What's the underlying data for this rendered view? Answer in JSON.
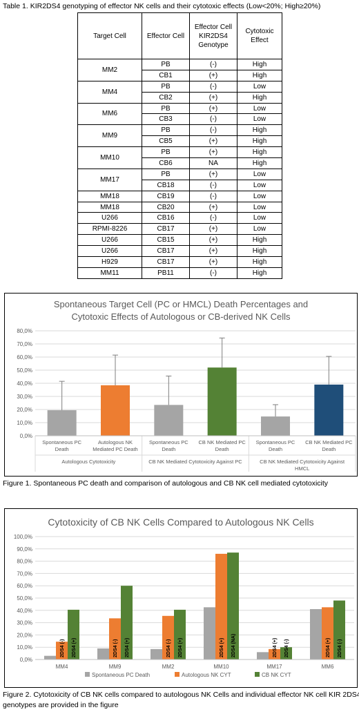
{
  "table1": {
    "caption": "Table 1. KIR2DS4 genotyping of effector NK cells and their cytotoxic effects (Low<20%; High≥20%)",
    "headers": [
      "Target Cell",
      "Effector Cell",
      "Effector Cell KIR2DS4 Genotype",
      "Cytotoxic Effect"
    ],
    "rows": [
      {
        "target": "MM2",
        "span": 2,
        "effector": "PB",
        "genotype": "(-)",
        "effect": "High"
      },
      {
        "target": "",
        "span": 0,
        "effector": "CB1",
        "genotype": "(+)",
        "effect": "High"
      },
      {
        "target": "MM4",
        "span": 2,
        "effector": "PB",
        "genotype": "(-)",
        "effect": "Low"
      },
      {
        "target": "",
        "span": 0,
        "effector": "CB2",
        "genotype": "(+)",
        "effect": "High"
      },
      {
        "target": "MM6",
        "span": 2,
        "effector": "PB",
        "genotype": "(+)",
        "effect": "Low"
      },
      {
        "target": "",
        "span": 0,
        "effector": "CB3",
        "genotype": "(-)",
        "effect": "Low"
      },
      {
        "target": "MM9",
        "span": 2,
        "effector": "PB",
        "genotype": "(-)",
        "effect": "High"
      },
      {
        "target": "",
        "span": 0,
        "effector": "CB5",
        "genotype": "(+)",
        "effect": "High"
      },
      {
        "target": "MM10",
        "span": 2,
        "effector": "PB",
        "genotype": "(+)",
        "effect": "High"
      },
      {
        "target": "",
        "span": 0,
        "effector": "CB6",
        "genotype": "NA",
        "effect": "High"
      },
      {
        "target": "MM17",
        "span": 2,
        "effector": "PB",
        "genotype": "(+)",
        "effect": "Low"
      },
      {
        "target": "",
        "span": 0,
        "effector": "CB18",
        "genotype": "(-)",
        "effect": "Low"
      },
      {
        "target": "MM18",
        "span": 1,
        "effector": "CB19",
        "genotype": "(-)",
        "effect": "Low"
      },
      {
        "target": "MM18",
        "span": 1,
        "effector": "CB20",
        "genotype": "(+)",
        "effect": "Low"
      },
      {
        "target": "U266",
        "span": 1,
        "effector": "CB16",
        "genotype": "(-)",
        "effect": "Low"
      },
      {
        "target": "RPMI-8226",
        "span": 1,
        "effector": "CB17",
        "genotype": "(+)",
        "effect": "Low"
      },
      {
        "target": "U266",
        "span": 1,
        "effector": "CB15",
        "genotype": "(+)",
        "effect": "High"
      },
      {
        "target": "U266",
        "span": 1,
        "effector": "CB17",
        "genotype": "(+)",
        "effect": "High"
      },
      {
        "target": "H929",
        "span": 1,
        "effector": "CB17",
        "genotype": "(+)",
        "effect": "High"
      },
      {
        "target": "MM11",
        "span": 1,
        "effector": "PB11",
        "genotype": "(-)",
        "effect": "High"
      }
    ]
  },
  "chart_data": [
    {
      "type": "bar",
      "title": "Spontaneous Target Cell (PC or HMCL) Death Percentages and Cytotoxic Effects of Autologous or CB-derived NK Cells",
      "title_lines": [
        "Spontaneous Target Cell (PC or HMCL) Death Percentages and",
        "Cytotoxic Effects of Autologous or CB-derived NK Cells"
      ],
      "yticks": [
        "0,0%",
        "10,0%",
        "20,0%",
        "30,0%",
        "40,0%",
        "50,0%",
        "60,0%",
        "70,0%",
        "80,0%"
      ],
      "ylim": [
        0,
        80
      ],
      "grid": true,
      "categories": [
        [
          "Spontaneous PC",
          "Death"
        ],
        [
          "Autologous NK",
          "Mediated PC Death"
        ],
        [
          "Spontaneous PC",
          "Death"
        ],
        [
          "CB NK Mediated PC",
          "Death"
        ],
        [
          "Spontaneous PC",
          "Death"
        ],
        [
          "CB NK Mediated PC",
          "Death"
        ]
      ],
      "groups": [
        [
          "Autologous Cytotoxicity"
        ],
        [
          "CB NK Mediated Cytotoxicity Against PC"
        ],
        [
          "CB NK Mediated Cytotoxicity Against",
          "HMCL"
        ]
      ],
      "values": [
        19.5,
        38.5,
        23.5,
        52,
        14.7,
        39
      ],
      "errors": [
        22,
        23,
        22,
        22.5,
        9,
        21.5
      ],
      "colors": [
        "#a5a5a5",
        "#ed7d31",
        "#a5a5a5",
        "#548235",
        "#a5a5a5",
        "#1f4e79"
      ],
      "caption": "Figure 1. Spontaneous PC death and comparison of autologous and CB NK cell mediated cytotoxicity"
    },
    {
      "type": "bar",
      "title": "Cytotoxicity of CB NK Cells Compared to Autologous NK Cells",
      "yticks": [
        "0,0%",
        "10,0%",
        "20,0%",
        "30,0%",
        "40,0%",
        "50,0%",
        "60,0%",
        "70,0%",
        "80,0%",
        "90,0%",
        "100,0%"
      ],
      "ylim": [
        0,
        100
      ],
      "grid": true,
      "categories": [
        "MM4",
        "MM9",
        "MM2",
        "MM10",
        "MM17",
        "MM6"
      ],
      "series": [
        {
          "name": "Spontaneous PC Death",
          "color": "#a5a5a5",
          "values": [
            3,
            9,
            8.5,
            42.5,
            6,
            41
          ],
          "labels": [
            "",
            "",
            "",
            "",
            "",
            ""
          ]
        },
        {
          "name": "Autologous NK CYT",
          "color": "#ed7d31",
          "values": [
            14.5,
            33.5,
            35.5,
            86,
            8.5,
            42.5
          ],
          "labels": [
            "2DS4 (-)",
            "2DS4 (-)",
            "2DS4 (-)",
            "2DS4 (+)",
            "2DS4 (+)",
            "2DS4 (+)"
          ]
        },
        {
          "name": "CB NK CYT",
          "color": "#548235",
          "values": [
            40.5,
            60,
            40.5,
            87,
            10,
            48
          ],
          "labels": [
            "2DS4 (+)",
            "2DS4 (+)",
            "2DS4 (+)",
            "2DS4 (NA)",
            "2DS4 (-)",
            "2DS4 (-)"
          ]
        }
      ],
      "legend": "bottom",
      "caption": "Figure 2. Cytotoxicity of CB NK cells compared to autologous NK Cells and individual effector NK cell KIR 2DS4 genotypes are provided in the figure",
      "caption_lines": [
        "Figure 2. Cytotoxicity of CB NK cells compared to autologous NK Cells and individual effector NK cell KIR 2DS4",
        "genotypes are provided in the figure"
      ]
    }
  ]
}
